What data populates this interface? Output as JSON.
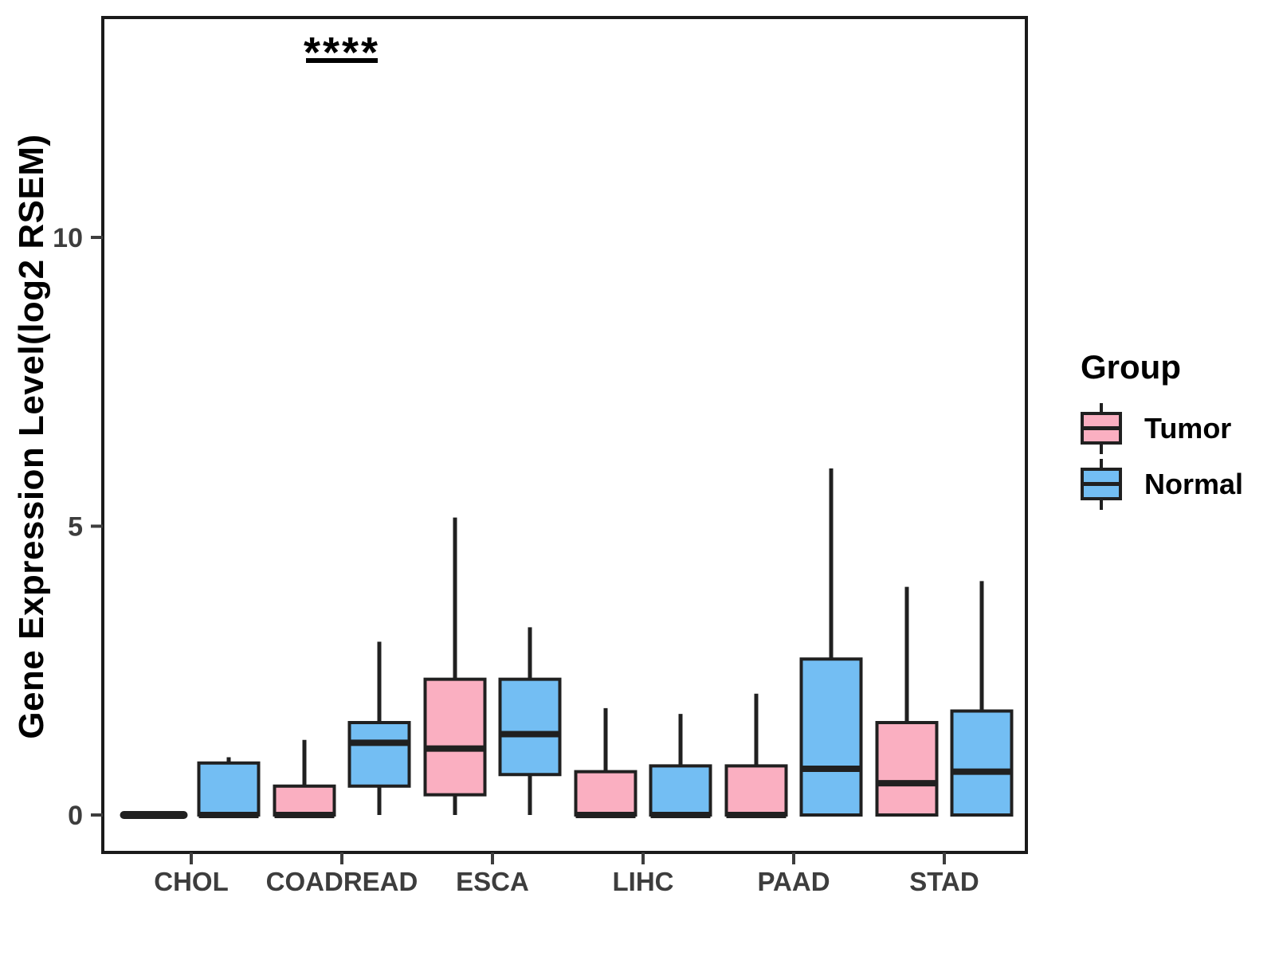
{
  "figure": {
    "background": "#FFFFFF"
  },
  "chart_data": {
    "type": "boxplot",
    "title": "",
    "xlabel": "",
    "ylabel": "Gene Expression Level(log2 RSEM)",
    "categories": [
      "CHOL",
      "COADREAD",
      "ESCA",
      "LIHC",
      "PAAD",
      "STAD"
    ],
    "yticks": [
      0,
      5,
      10
    ],
    "ylim": [
      -0.66,
      13.8
    ],
    "grid": false,
    "legend_position": "right",
    "groups": [
      {
        "name": "Tumor",
        "fill": "#FAAFC1"
      },
      {
        "name": "Normal",
        "fill": "#73BEF3"
      }
    ],
    "series": [
      {
        "group": "Tumor",
        "values": [
          {
            "category": "CHOL",
            "low": 0,
            "q1": 0,
            "median": 0,
            "q3": 0,
            "high": 0
          },
          {
            "category": "COADREAD",
            "low": 0,
            "q1": 0,
            "median": 0,
            "q3": 0.5,
            "high": 1.3
          },
          {
            "category": "ESCA",
            "low": 0,
            "q1": 0.35,
            "median": 1.15,
            "q3": 2.35,
            "high": 5.15
          },
          {
            "category": "LIHC",
            "low": 0,
            "q1": 0,
            "median": 0,
            "q3": 0.75,
            "high": 1.85
          },
          {
            "category": "PAAD",
            "low": 0,
            "q1": 0,
            "median": 0,
            "q3": 0.85,
            "high": 2.1
          },
          {
            "category": "STAD",
            "low": 0,
            "q1": 0,
            "median": 0.55,
            "q3": 1.6,
            "high": 3.95
          }
        ]
      },
      {
        "group": "Normal",
        "values": [
          {
            "category": "CHOL",
            "low": 0,
            "q1": 0,
            "median": 0,
            "q3": 0.9,
            "high": 1.0
          },
          {
            "category": "COADREAD",
            "low": 0,
            "q1": 0.5,
            "median": 1.25,
            "q3": 1.6,
            "high": 3.0
          },
          {
            "category": "ESCA",
            "low": 0,
            "q1": 0.7,
            "median": 1.4,
            "q3": 2.35,
            "high": 3.25
          },
          {
            "category": "LIHC",
            "low": 0,
            "q1": 0,
            "median": 0,
            "q3": 0.85,
            "high": 1.75
          },
          {
            "category": "PAAD",
            "low": 0,
            "q1": 0,
            "median": 0.8,
            "q3": 2.7,
            "high": 6.0
          },
          {
            "category": "STAD",
            "low": 0,
            "q1": 0,
            "median": 0.75,
            "q3": 1.8,
            "high": 4.05
          }
        ]
      }
    ],
    "annotation": {
      "text": "****",
      "category": "COADREAD"
    }
  },
  "legend": {
    "title": "Group",
    "items": [
      {
        "label": "Tumor"
      },
      {
        "label": "Normal"
      }
    ]
  },
  "colors": {
    "box_stroke": "#202020",
    "panel_border": "#1A1A1A",
    "tick_text": "#3D3D3D",
    "annotation": "#000000"
  }
}
